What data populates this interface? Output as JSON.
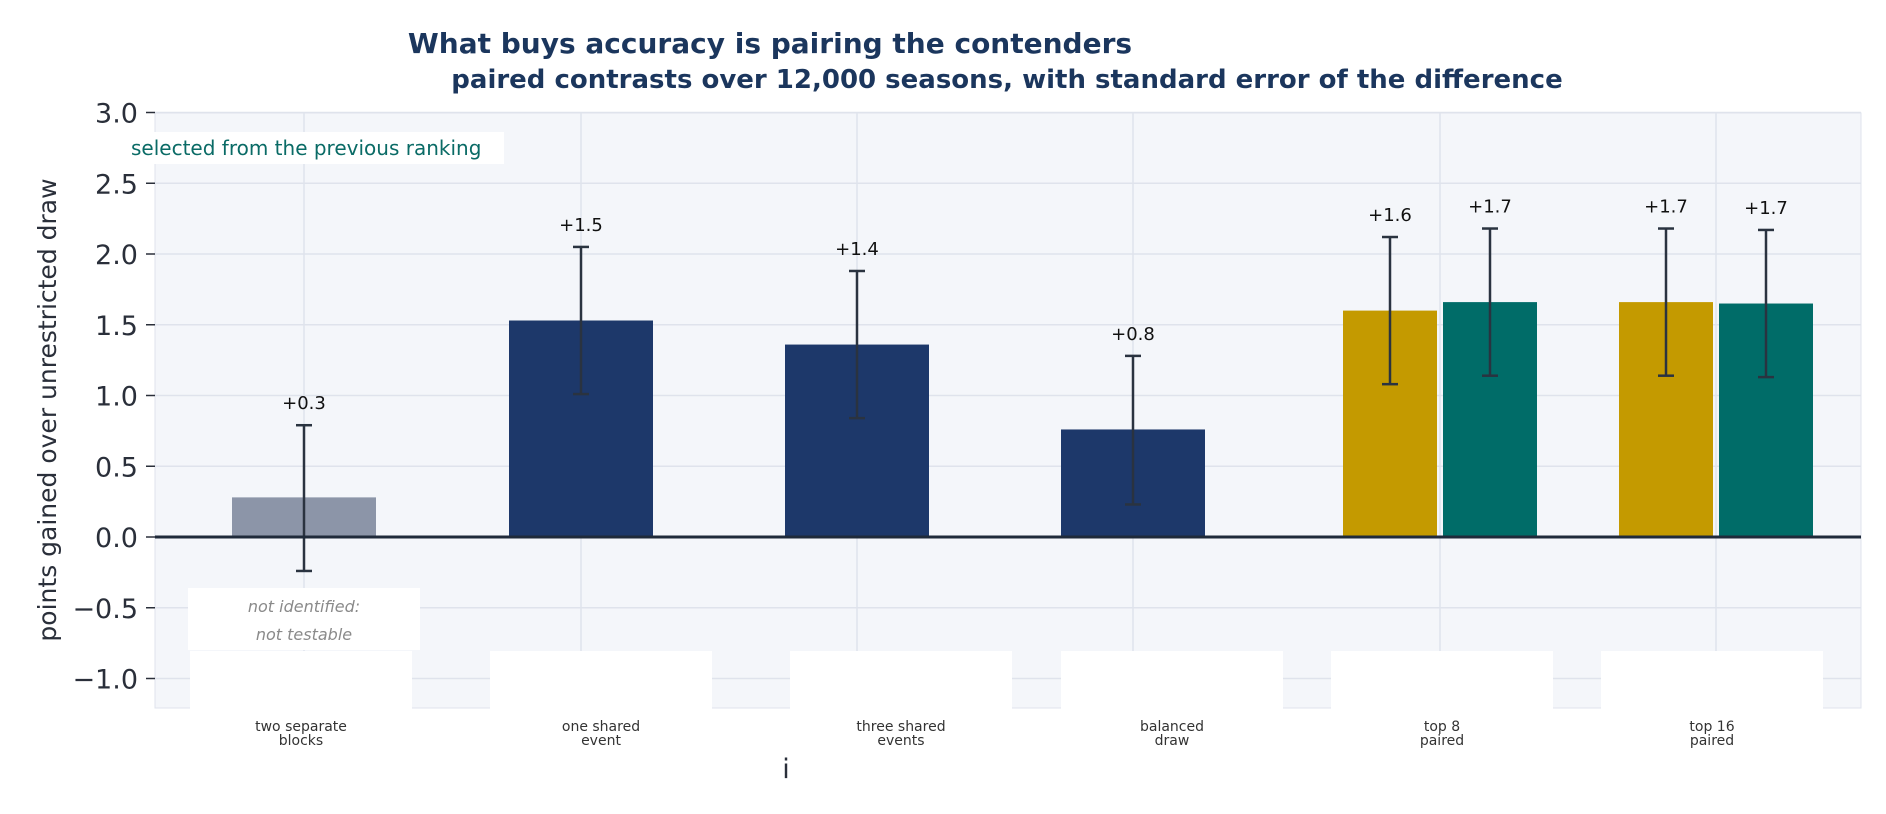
{
  "chart_data": {
    "type": "bar",
    "title": "What buys accuracy is pairing the contenders",
    "subtitle": "paired contrasts over 12,000 seasons, with standard error of the difference",
    "ylabel": "points gained over unrestricted draw",
    "xlabel": "i",
    "ylim": [
      -1.2,
      3.0
    ],
    "yticks": [
      "3.0",
      "2.5",
      "2.0",
      "1.5",
      "1.0",
      "0.5",
      "0.0",
      "−0.5",
      "−1.0"
    ],
    "ytick_values": [
      3.0,
      2.5,
      2.0,
      1.5,
      1.0,
      0.5,
      0.0,
      -0.5,
      -1.0
    ],
    "grid": true,
    "legend_note": "selected from the previous ranking",
    "untestable_note": [
      "not identified:",
      "not testable"
    ],
    "colors": {
      "grey": "#8c95a8",
      "navy": "#1d386a",
      "gold": "#c49a00",
      "teal": "#006c68",
      "error": "#2a3340",
      "background": "#f4f6fa"
    },
    "categories": [
      {
        "label": [
          "two separate",
          "blocks"
        ]
      },
      {
        "label": [
          "one shared",
          "event"
        ]
      },
      {
        "label": [
          "three shared",
          "events"
        ]
      },
      {
        "label": [
          "balanced",
          "draw"
        ]
      },
      {
        "label": [
          "top 8",
          "paired"
        ]
      },
      {
        "label": [
          "top 16",
          "paired"
        ]
      }
    ],
    "bars": [
      {
        "category": 0,
        "value": 0.28,
        "err_low": -0.24,
        "err_high": 0.79,
        "label": "+0.3",
        "color": "grey"
      },
      {
        "category": 1,
        "value": 1.53,
        "err_low": 1.01,
        "err_high": 2.05,
        "label": "+1.5",
        "color": "navy"
      },
      {
        "category": 2,
        "value": 1.36,
        "err_low": 0.84,
        "err_high": 1.88,
        "label": "+1.4",
        "color": "navy"
      },
      {
        "category": 3,
        "value": 0.76,
        "err_low": 0.23,
        "err_high": 1.28,
        "label": "+0.8",
        "color": "navy"
      },
      {
        "category": 4,
        "slot": "left",
        "value": 1.6,
        "err_low": 1.08,
        "err_high": 2.12,
        "label": "+1.6",
        "color": "gold"
      },
      {
        "category": 4,
        "slot": "right",
        "value": 1.66,
        "err_low": 1.14,
        "err_high": 2.18,
        "label": "+1.7",
        "color": "teal"
      },
      {
        "category": 5,
        "slot": "left",
        "value": 1.66,
        "err_low": 1.14,
        "err_high": 2.18,
        "label": "+1.7",
        "color": "gold"
      },
      {
        "category": 5,
        "slot": "right",
        "value": 1.65,
        "err_low": 1.13,
        "err_high": 2.17,
        "label": "+1.7",
        "color": "teal"
      }
    ]
  }
}
